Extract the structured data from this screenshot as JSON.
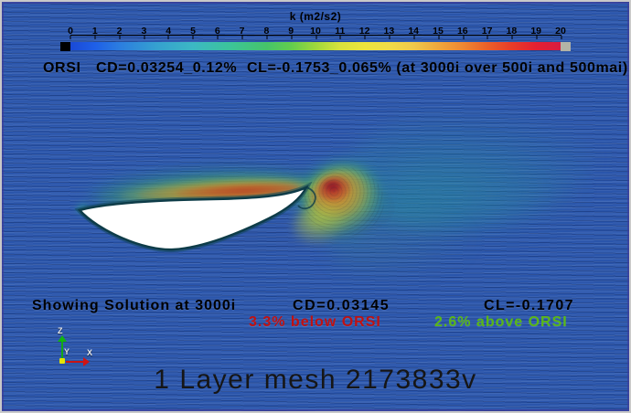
{
  "colorbar": {
    "title": "k (m2/s2)",
    "ticks": [
      "0",
      "1",
      "2",
      "3",
      "4",
      "5",
      "6",
      "7",
      "8",
      "9",
      "10",
      "11",
      "12",
      "13",
      "14",
      "15",
      "16",
      "17",
      "18",
      "19",
      "20"
    ],
    "below_range_color": "#000000",
    "above_range_color": "#b3b3a6"
  },
  "reference": {
    "label": "ORSI",
    "cd_text": "CD=0.03254_0.12%",
    "cl_text": "CL=-0.1753_0.065% (at 3000i over 500i and 500mai)"
  },
  "solution": {
    "status_text": "Showing Solution at 3000i",
    "cd_text": "CD=0.03145",
    "cl_text": "CL=-0.1707",
    "cd_delta_text": "3.3% below ORSI",
    "cl_delta_text": "2.6% above ORSI",
    "cd_delta_color": "#c01111",
    "cl_delta_color": "#5ab717"
  },
  "footer": {
    "title": "1 Layer mesh 2173833v"
  },
  "axes_widget": {
    "x_label": "X",
    "y_label": "Y",
    "z_label": "Z",
    "x_color": "#d01414",
    "z_color": "#12b412",
    "origin_color": "#e4e400"
  },
  "chart_data": {
    "type": "heatmap",
    "title": "k (m2/s2)",
    "colorbar": {
      "label": "k (m2/s2)",
      "range": [
        0,
        20
      ],
      "tick_step": 1,
      "palette": "blue-cyan-green-yellow-orange-red rainbow",
      "below_range_color": "black",
      "above_range_color": "gray"
    },
    "reference": {
      "name": "ORSI",
      "CD": 0.03254,
      "CD_uncertainty_pct": 0.12,
      "CL": -0.1753,
      "CL_uncertainty_pct": 0.065,
      "note": "at 3000i over 500i and 500mai"
    },
    "solution": {
      "iteration": "3000i",
      "CD": 0.03145,
      "CL": -0.1707,
      "CD_vs_reference": "3.3% below ORSI",
      "CL_vs_reference": "2.6% above ORSI"
    },
    "mesh": {
      "layers": 1,
      "vertices_label": "2173833v"
    },
    "scene": "LIC flow visualization of turbulent kinetic energy k around a cambered airfoil section; high-k band along the upper surface and a red vortex core in the wake behind the trailing edge, diffusing into a teal plume downstream"
  }
}
